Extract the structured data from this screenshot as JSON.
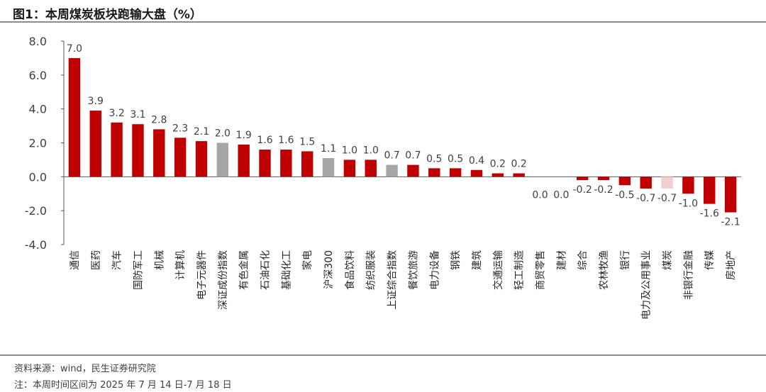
{
  "title": "图1：本周煤炭板块跑输大盘（%）",
  "source": "资料来源：wind，民生证券研究院",
  "note": "注：本周时间区间为 2025 年 7 月 14 日-7 月 18 日",
  "colors": {
    "sector": "#c00000",
    "index": "#a6a6a6",
    "highlight": "#f2d0d0"
  },
  "chart_data": {
    "type": "bar",
    "title": "图1：本周煤炭板块跑输大盘（%）",
    "xlabel": "",
    "ylabel": "",
    "ylim": [
      -4.0,
      8.0
    ],
    "yticks": [
      "8.0",
      "6.0",
      "4.0",
      "2.0",
      "0.0",
      "-2.0",
      "-4.0"
    ],
    "ytick_values": [
      8,
      6,
      4,
      2,
      0,
      -2,
      -4
    ],
    "grid": false,
    "legend": "none",
    "categories": [
      "通信",
      "医药",
      "汽车",
      "国防军工",
      "机械",
      "计算机",
      "电子元器件",
      "深证成份指数",
      "有色金属",
      "石油石化",
      "基础化工",
      "家电",
      "沪深300",
      "食品饮料",
      "纺织服装",
      "上证综合指数",
      "餐饮旅游",
      "电力设备",
      "钢铁",
      "建筑",
      "交通运输",
      "轻工制造",
      "商贸零售",
      "建材",
      "综合",
      "农林牧渔",
      "银行",
      "电力及公用事业",
      "煤炭",
      "非银行金融",
      "传媒",
      "房地产"
    ],
    "values": [
      7.0,
      3.9,
      3.2,
      3.1,
      2.8,
      2.3,
      2.1,
      2.0,
      1.9,
      1.6,
      1.6,
      1.5,
      1.1,
      1.0,
      1.0,
      0.7,
      0.7,
      0.5,
      0.5,
      0.4,
      0.2,
      0.2,
      0.0,
      0.0,
      -0.2,
      -0.2,
      -0.5,
      -0.7,
      -0.7,
      -1.0,
      -1.6,
      -2.1
    ],
    "labels": [
      "7.0",
      "3.9",
      "3.2",
      "3.1",
      "2.8",
      "2.3",
      "2.1",
      "2.0",
      "1.9",
      "1.6",
      "1.6",
      "1.5",
      "1.1",
      "1.0",
      "1.0",
      "0.7",
      "0.7",
      "0.5",
      "0.5",
      "0.4",
      "0.2",
      "0.2",
      "0.0",
      "0.0",
      "-0.2",
      "-0.2",
      "-0.5",
      "-0.7",
      "-0.7",
      "-1.0",
      "-1.6",
      "-2.1"
    ],
    "bar_kind": [
      "sector",
      "sector",
      "sector",
      "sector",
      "sector",
      "sector",
      "sector",
      "index",
      "sector",
      "sector",
      "sector",
      "sector",
      "index",
      "sector",
      "sector",
      "index",
      "sector",
      "sector",
      "sector",
      "sector",
      "sector",
      "sector",
      "sector",
      "sector",
      "sector",
      "sector",
      "sector",
      "sector",
      "highlight",
      "sector",
      "sector",
      "sector"
    ]
  }
}
